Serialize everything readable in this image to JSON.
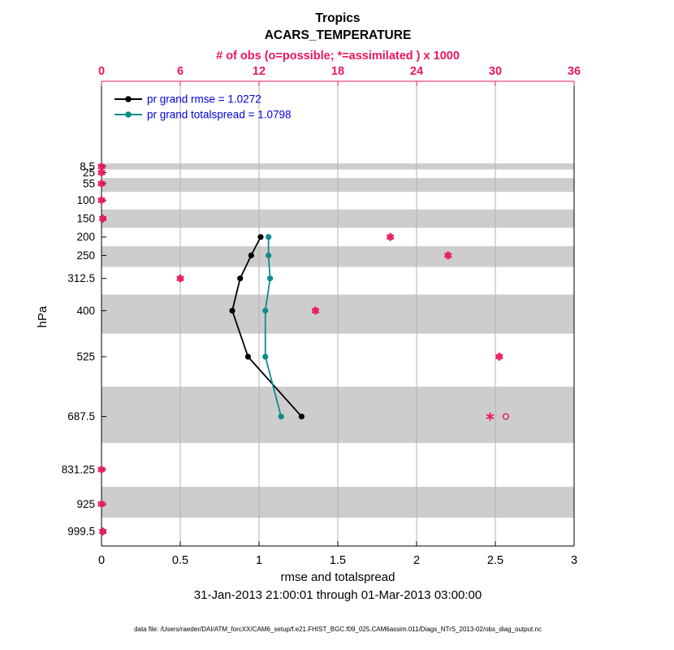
{
  "chart_data": {
    "type": "line",
    "title": "Tropics",
    "subtitle": "ACARS_TEMPERATURE",
    "top_axis": {
      "label": "# of obs (o=possible; *=assimilated ) x 1000",
      "min": 0,
      "max": 36,
      "ticks": [
        0,
        6,
        12,
        18,
        24,
        30,
        36
      ],
      "color": "#e8185d"
    },
    "x_axis": {
      "label": "rmse and totalspread",
      "min": 0,
      "max": 3,
      "ticks": [
        0,
        0.5,
        1,
        1.5,
        2,
        2.5,
        3
      ]
    },
    "y_axis": {
      "label": "hPa",
      "levels": [
        8.5,
        25,
        55,
        100,
        150,
        200,
        250,
        312.5,
        400,
        525,
        687.5,
        831.25,
        925,
        999.5
      ],
      "top_value": -223,
      "bottom_value": 1039,
      "direction": "pressure-increases-downward"
    },
    "shaded_band_levels": [
      8.5,
      55,
      150,
      250,
      400,
      687.5,
      925
    ],
    "band_color": "#cdcdcd",
    "grid_color": "#b3b3b3",
    "legend": {
      "position": "top-left",
      "text_color": "#0000dd"
    },
    "series": [
      {
        "name": "pr grand rmse = 1.0272",
        "color": "#000000",
        "marker": "filled-circle",
        "levels": [
          200,
          250,
          312.5,
          400,
          525,
          687.5
        ],
        "values": [
          1.01,
          0.95,
          0.88,
          0.83,
          0.93,
          1.27
        ]
      },
      {
        "name": "pr grand totalspread = 1.0798",
        "color": "#0e8c8c",
        "marker": "filled-circle",
        "levels": [
          200,
          250,
          312.5,
          400,
          525,
          687.5
        ],
        "values": [
          1.06,
          1.06,
          1.07,
          1.04,
          1.04,
          1.14
        ]
      }
    ],
    "observations": {
      "color": "#e8185d",
      "marker_possible": "open-circle",
      "marker_assimilated": "asterisk",
      "levels": [
        8.5,
        25,
        55,
        100,
        150,
        200,
        250,
        312.5,
        400,
        525,
        687.5,
        831.25,
        925,
        999.5
      ],
      "possible_x1000": [
        0,
        0,
        0,
        0,
        0.1,
        22.0,
        26.4,
        6.0,
        16.3,
        30.3,
        30.8,
        0,
        0,
        0.1
      ],
      "assimilated_x1000": [
        0,
        0,
        0,
        0,
        0.1,
        22.0,
        26.4,
        6.0,
        16.3,
        30.3,
        29.6,
        0,
        0,
        0.1
      ]
    },
    "date_range": "31-Jan-2013 21:00:01 through 01-Mar-2013 03:00:00",
    "footer": "data file: /Users/raeder/DAI/ATM_forcXX/CAM6_setup/f.e21.FHIST_BGC.f09_025.CAM6assim.011/Diags_NTrS_2013-02/obs_diag_output.nc"
  }
}
